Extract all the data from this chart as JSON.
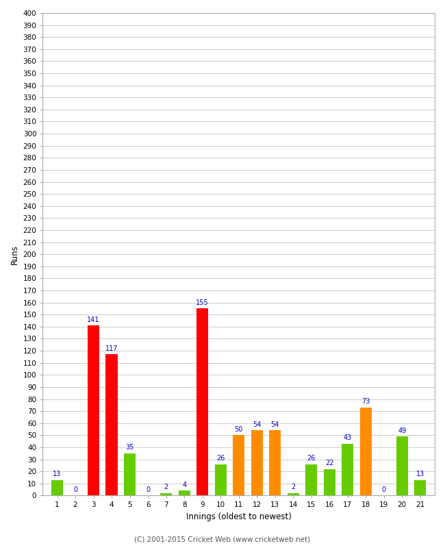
{
  "xlabel": "Innings (oldest to newest)",
  "ylabel": "Runs",
  "innings": [
    1,
    2,
    3,
    4,
    5,
    6,
    7,
    8,
    9,
    10,
    11,
    12,
    13,
    14,
    15,
    16,
    17,
    18,
    19,
    20,
    21
  ],
  "values": [
    13,
    0,
    141,
    117,
    35,
    0,
    2,
    4,
    155,
    26,
    50,
    54,
    54,
    2,
    26,
    22,
    43,
    73,
    0,
    49,
    13
  ],
  "colors": [
    "#66cc00",
    "#66cc00",
    "#ff0000",
    "#ff0000",
    "#66cc00",
    "#66cc00",
    "#66cc00",
    "#66cc00",
    "#ff0000",
    "#66cc00",
    "#ff8c00",
    "#ff8c00",
    "#ff8c00",
    "#66cc00",
    "#66cc00",
    "#66cc00",
    "#66cc00",
    "#ff8c00",
    "#66cc00",
    "#66cc00",
    "#66cc00"
  ],
  "ylim": [
    0,
    400
  ],
  "background_color": "#ffffff",
  "plot_bg_color": "#ffffff",
  "grid_color": "#cccccc",
  "label_color": "#0000cc",
  "footer": "(C) 2001-2015 Cricket Web (www.cricketweb.net)",
  "footer_color": "#555555"
}
